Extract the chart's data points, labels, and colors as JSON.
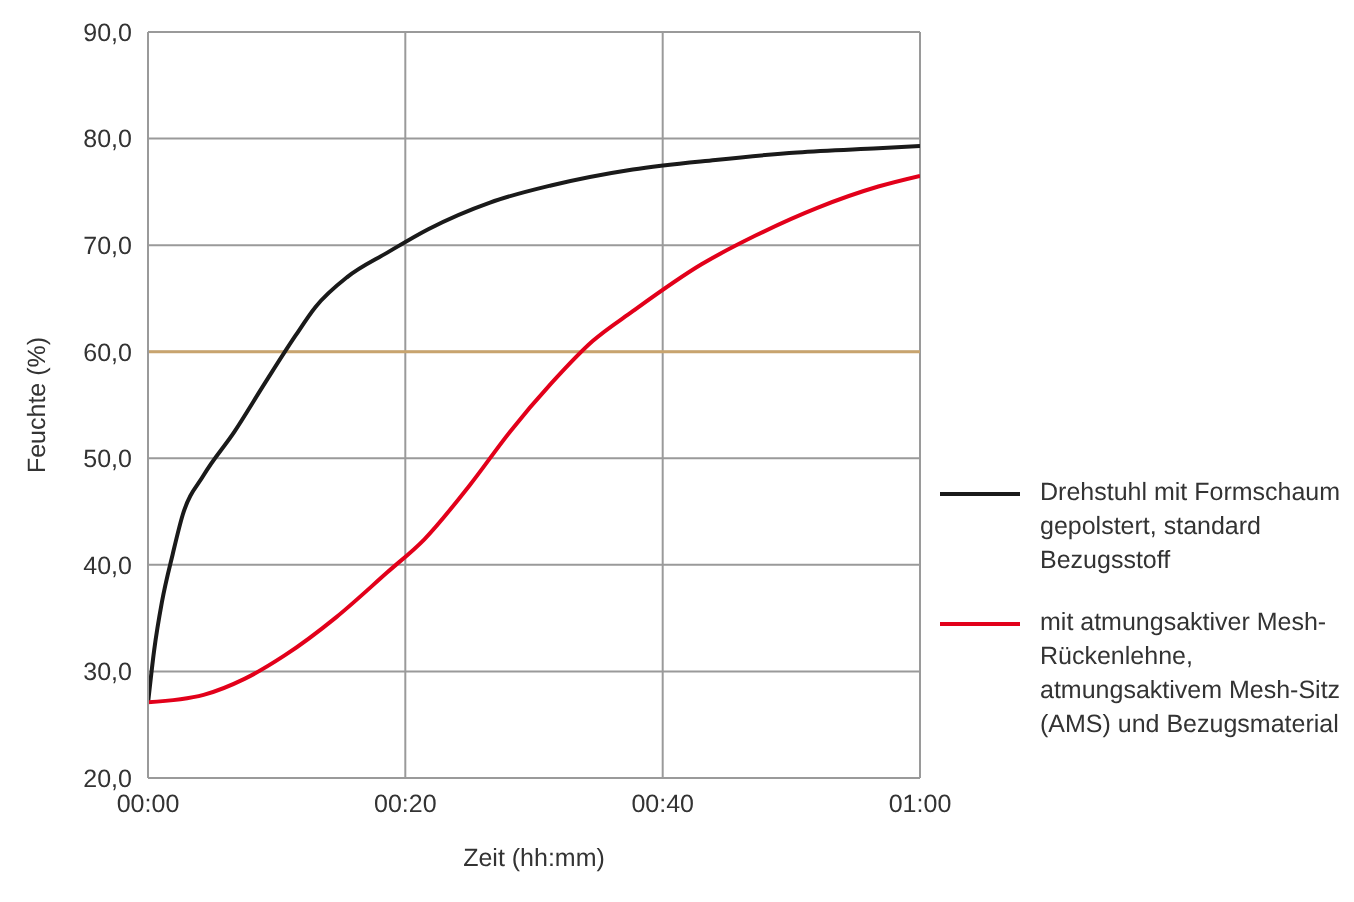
{
  "chart_data": {
    "type": "line",
    "xlabel": "Zeit (hh:mm)",
    "ylabel": "Feuchte (%)",
    "xlim": [
      0,
      1
    ],
    "xticks": [
      {
        "value": 0,
        "label": "00:00"
      },
      {
        "value": 0.3333,
        "label": "00:20"
      },
      {
        "value": 0.6667,
        "label": "00:40"
      },
      {
        "value": 1,
        "label": "01:00"
      }
    ],
    "ylim": [
      20,
      90
    ],
    "yticks": [
      {
        "value": 20,
        "label": "20,0"
      },
      {
        "value": 30,
        "label": "30,0"
      },
      {
        "value": 40,
        "label": "40,0"
      },
      {
        "value": 50,
        "label": "50,0"
      },
      {
        "value": 60,
        "label": "60,0"
      },
      {
        "value": 70,
        "label": "70,0"
      },
      {
        "value": 80,
        "label": "80,0"
      },
      {
        "value": 90,
        "label": "90,0"
      }
    ],
    "grid": true,
    "legend": "right",
    "marker": "none",
    "line_style": "solid",
    "ref_lines": [
      {
        "axis": "y",
        "value": 60,
        "color": "#c8a46e"
      }
    ],
    "series": [
      {
        "name": "Drehstuhl mit Formschaum gepolstert, standard Bezugsstoff",
        "color": "#1a1a1a",
        "x": [
          0,
          0.008,
          0.018,
          0.032,
          0.045,
          0.072,
          0.112,
          0.151,
          0.191,
          0.217,
          0.258,
          0.31,
          0.363,
          0.443,
          0.522,
          0.628,
          0.735,
          0.841,
          0.946,
          1.0
        ],
        "values": [
          27,
          32,
          36.5,
          41,
          44.7,
          48.4,
          52.5,
          57,
          61.5,
          64.2,
          67,
          69.3,
          71.5,
          74,
          75.6,
          77.1,
          78,
          78.7,
          79.1,
          79.3
        ]
      },
      {
        "name": "mit atmungsaktiver Mesh-Rückenlehne, atmungsaktivem Mesh-Sitz (AMS) und Bezugsmaterial",
        "color": "#e2001a",
        "x": [
          0,
          0.072,
          0.125,
          0.177,
          0.244,
          0.31,
          0.358,
          0.417,
          0.469,
          0.522,
          0.576,
          0.628,
          0.717,
          0.787,
          0.867,
          0.946,
          1.0
        ],
        "values": [
          27.1,
          27.8,
          29.3,
          31.5,
          35.1,
          39.3,
          42.4,
          47.5,
          52.5,
          57,
          61,
          63.8,
          68.2,
          70.9,
          73.5,
          75.5,
          76.5
        ]
      }
    ]
  }
}
